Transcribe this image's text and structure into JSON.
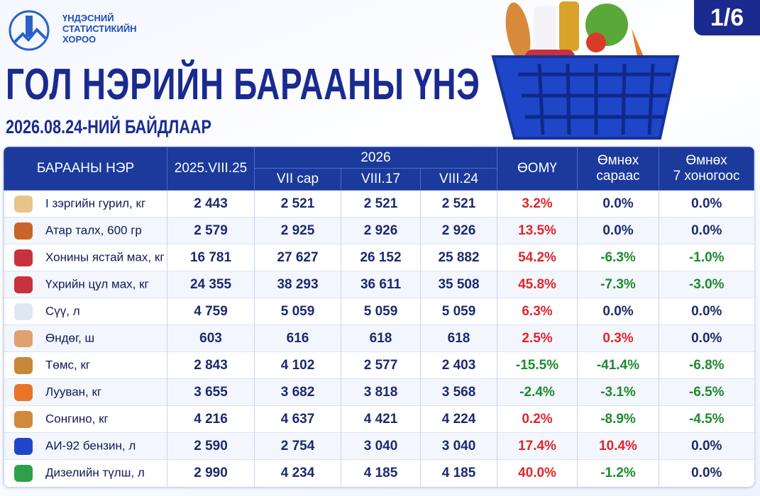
{
  "header": {
    "org": [
      "ҮНДЭСНИЙ",
      "СТАТИСТИКИЙН",
      "ХОРОО"
    ],
    "title": "ГОЛ НЭРИЙН БАРААНЫ ҮНЭ",
    "subtitle": "2026.08.24-НИЙ БАЙДЛААР",
    "page": "1/6"
  },
  "table": {
    "columns": {
      "name": "БАРААНЫ НЭР",
      "prev": "2025.VIII.25",
      "group": "2026",
      "sub": [
        "VII сар",
        "VIII.17",
        "VIII.24"
      ],
      "yoy": "ӨОМҮ",
      "mom": [
        "Өмнөх",
        "сараас"
      ],
      "wow": [
        "Өмнөх",
        "7 хоногоос"
      ]
    },
    "rows": [
      [
        "I зэргийн гурил, кг",
        "2 443",
        "2 521",
        "2 521",
        "2 521",
        "3.2%",
        "0.0%",
        "0.0%"
      ],
      [
        "Атар талх, 600 гр",
        "2 579",
        "2 925",
        "2 926",
        "2 926",
        "13.5%",
        "0.0%",
        "0.0%"
      ],
      [
        "Хонины ястай мах, кг",
        "16 781",
        "27 627",
        "26 152",
        "25 882",
        "54.2%",
        "-6.3%",
        "-1.0%"
      ],
      [
        "Үхрийн цул мах, кг",
        "24 355",
        "38 293",
        "36 611",
        "35 508",
        "45.8%",
        "-7.3%",
        "-3.0%"
      ],
      [
        "Сүү, л",
        "4 759",
        "5 059",
        "5 059",
        "5 059",
        "6.3%",
        "0.0%",
        "0.0%"
      ],
      [
        "Өндөг, ш",
        "603",
        "616",
        "618",
        "618",
        "2.5%",
        "0.3%",
        "0.0%"
      ],
      [
        "Төмс, кг",
        "2 843",
        "4 102",
        "2 577",
        "2 403",
        "-15.5%",
        "-41.4%",
        "-6.8%"
      ],
      [
        "Лууван, кг",
        "3 655",
        "3 682",
        "3 818",
        "3 568",
        "-2.4%",
        "-3.1%",
        "-6.5%"
      ],
      [
        "Сонгино, кг",
        "4 216",
        "4 637",
        "4 421",
        "4 224",
        "0.2%",
        "-8.9%",
        "-4.5%"
      ],
      [
        "АИ-92 бензин, л",
        "2 590",
        "2 754",
        "3 040",
        "3 040",
        "17.4%",
        "10.4%",
        "0.0%"
      ],
      [
        "Дизелийн түлш, л",
        "2 990",
        "4 234",
        "4 185",
        "4 185",
        "40.0%",
        "-1.2%",
        "0.0%"
      ]
    ]
  }
}
